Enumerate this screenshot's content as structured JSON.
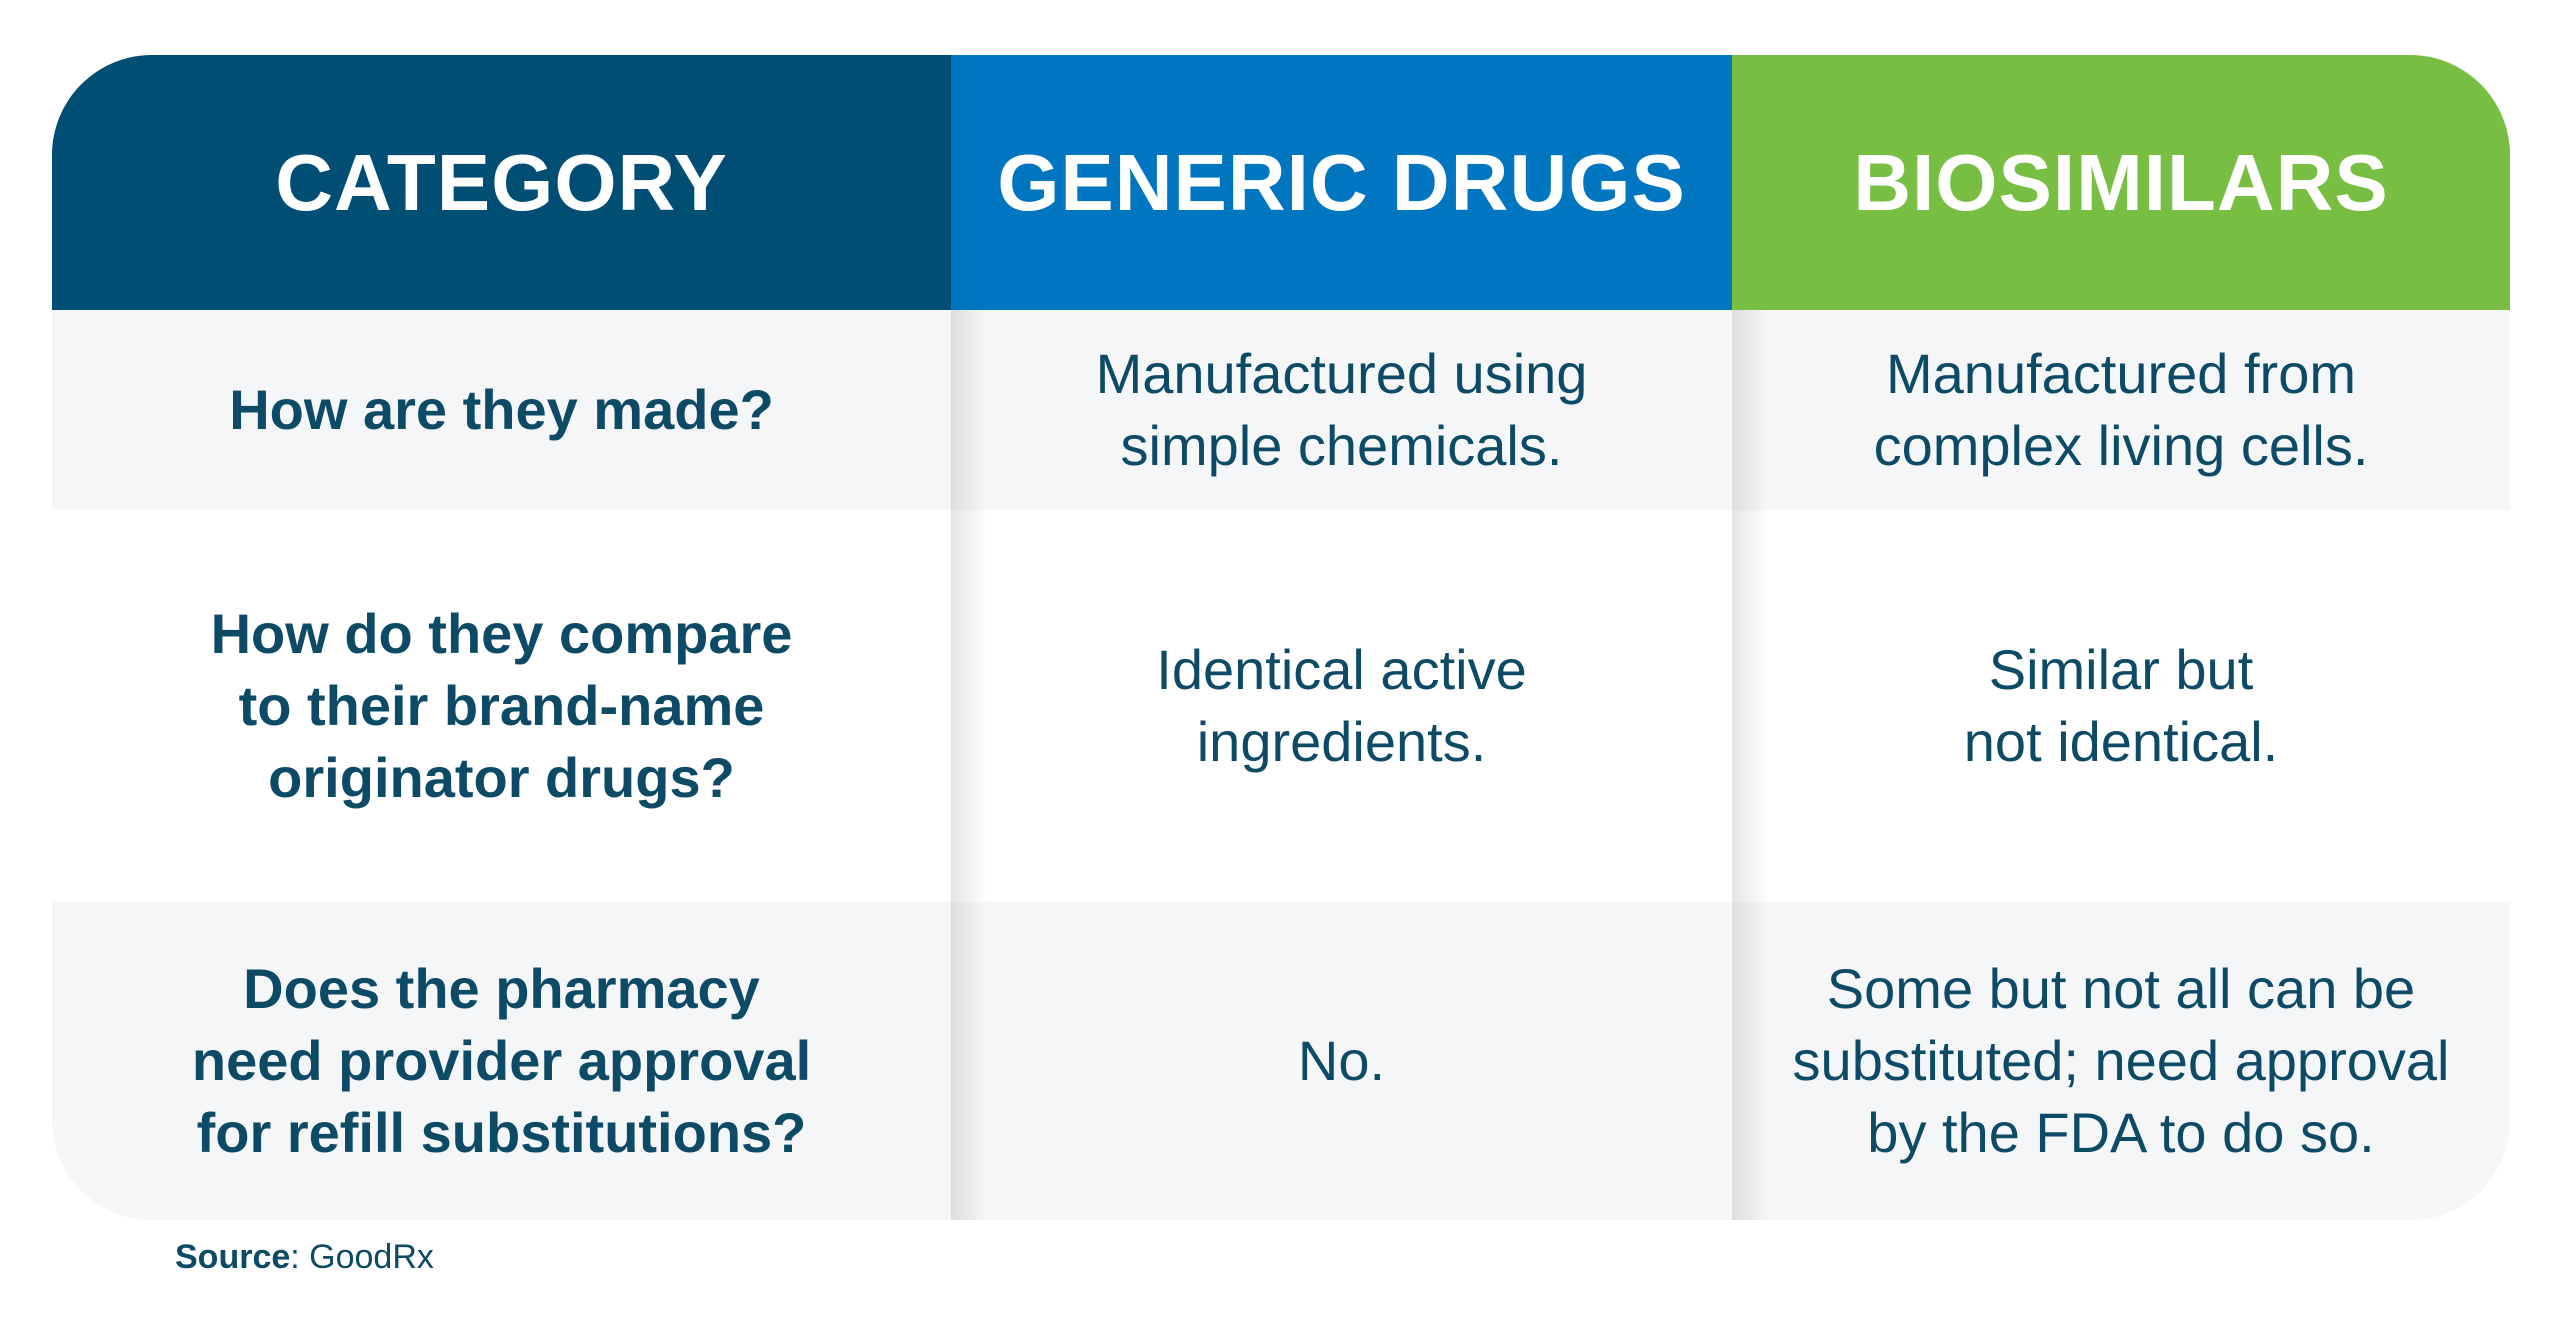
{
  "headers": {
    "category": "CATEGORY",
    "generic": "GENERIC DRUGS",
    "biosimilars": "BIOSIMILARS"
  },
  "rows": [
    {
      "question": "How are they made?",
      "generic": "Manufactured using\nsimple chemicals.",
      "biosimilars": "Manufactured from\ncomplex living cells."
    },
    {
      "question": "How do they compare\nto their brand-name\noriginator drugs?",
      "generic": "Identical active\ningredients.",
      "biosimilars": "Similar but\nnot identical."
    },
    {
      "question": "Does the pharmacy\nneed provider approval\nfor refill substitutions?",
      "generic": "No.",
      "biosimilars": "Some but not all can be\nsubstituted; need approval\nby the FDA to do so."
    }
  ],
  "source": {
    "label": "Source",
    "value": ": GoodRx"
  },
  "colors": {
    "category_header": "#004e74",
    "generic_header": "#0075c0",
    "biosimilars_header": "#78be43",
    "text": "#0d4a66"
  }
}
